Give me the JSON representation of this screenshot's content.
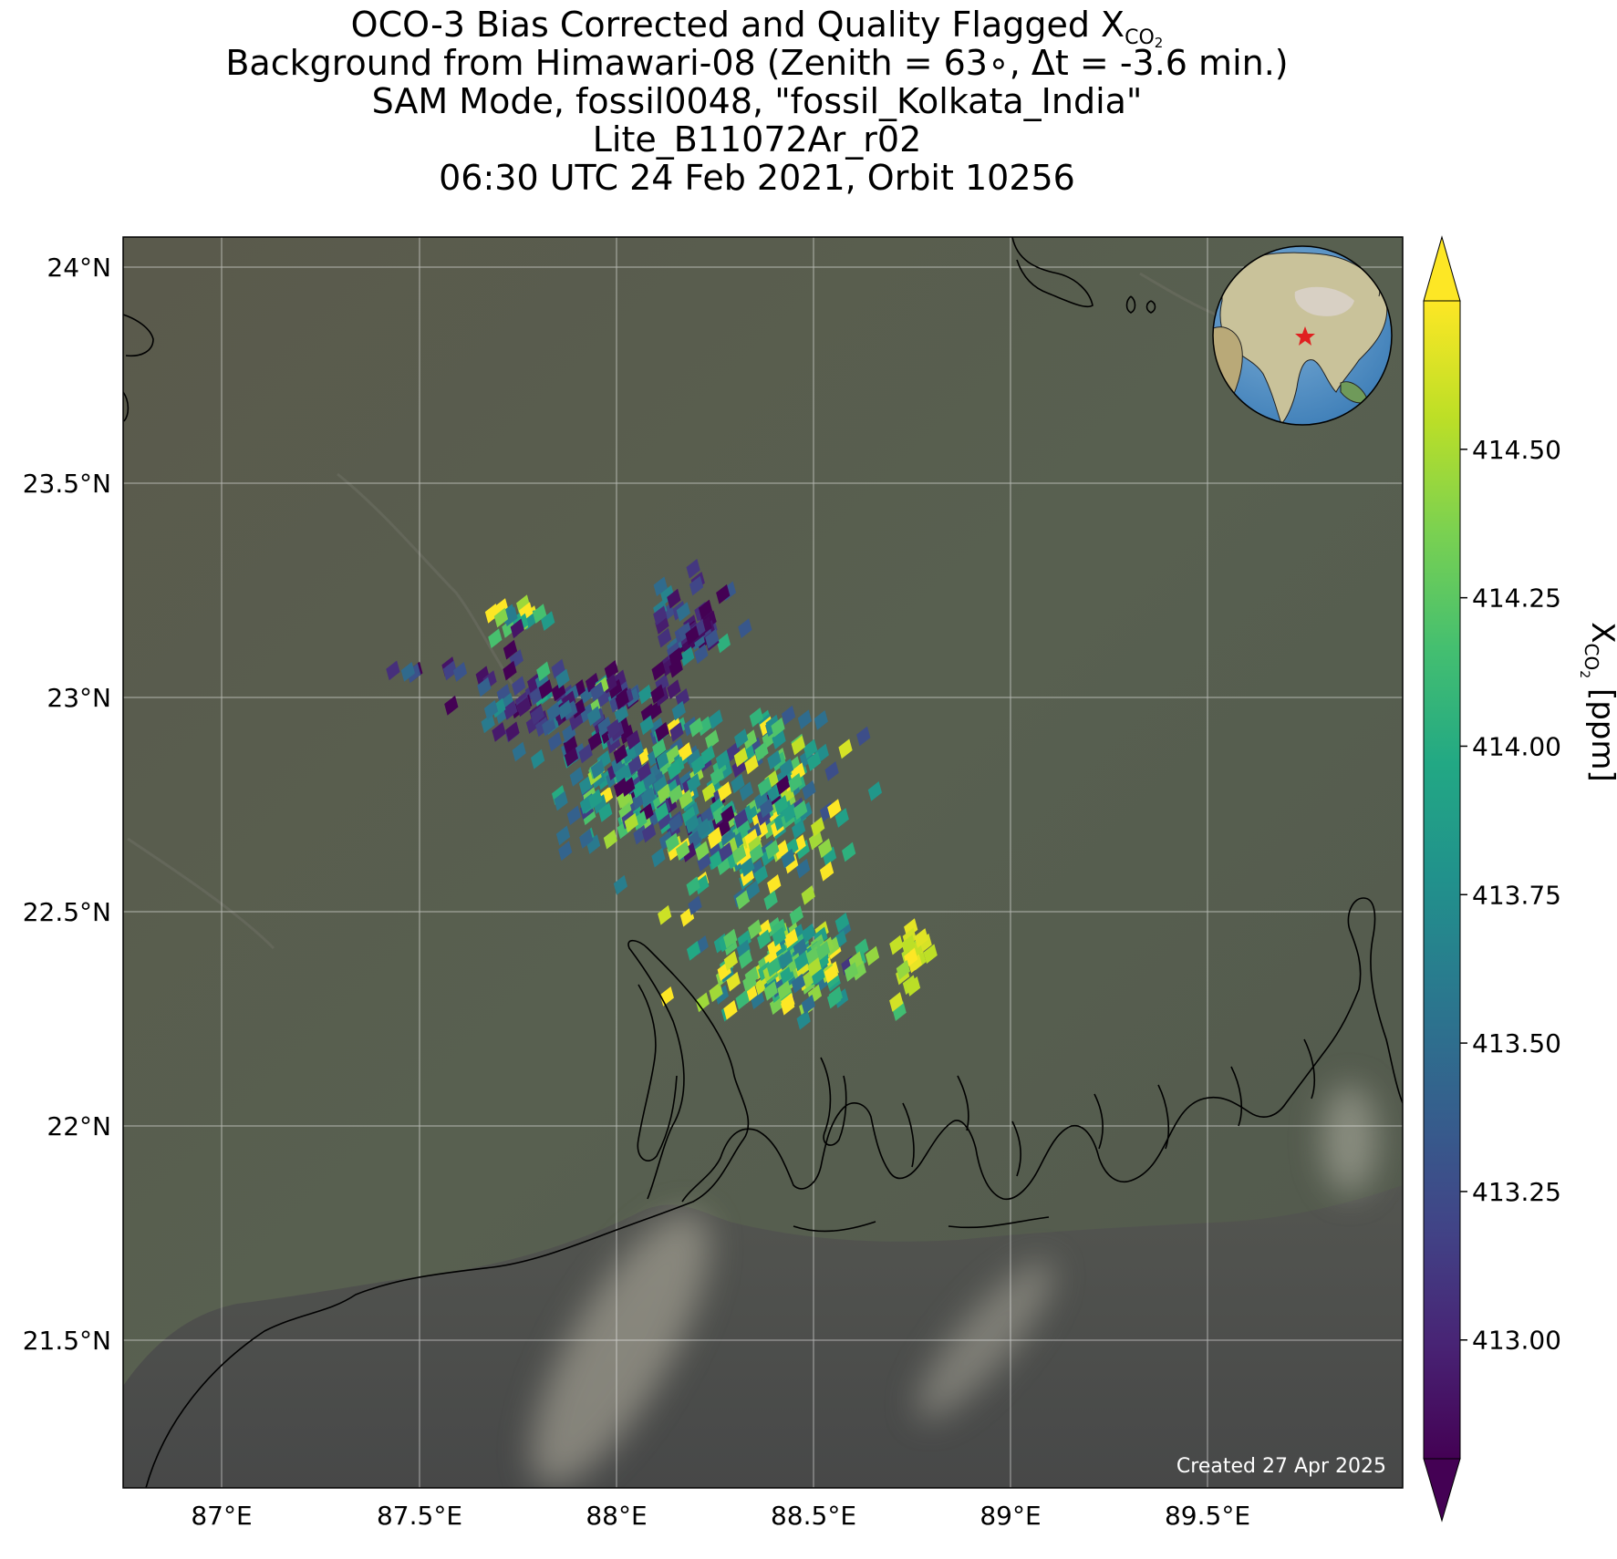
{
  "title": {
    "line1_main": "OCO-3 Bias Corrected and Quality Flagged X",
    "line1_sub": "CO",
    "line1_subsub": "2",
    "line2": "Background from Himawari-08 (Zenith = 63∘, Δt = -3.6 min.)",
    "line3": "SAM Mode, fossil0048, \"fossil_Kolkata_India\"",
    "line4": "Lite_B11072Ar_r02",
    "line5": "06:30 UTC 24 Feb 2021, Orbit 10256"
  },
  "footer": {
    "created": "Created 27 Apr 2025"
  },
  "map": {
    "lon_range": [
      86.72,
      89.97
    ],
    "lat_range": [
      21.07,
      24.07
    ],
    "lon_ticks": [
      {
        "value": 87.0,
        "label": "87°E"
      },
      {
        "value": 87.5,
        "label": "87.5°E"
      },
      {
        "value": 88.0,
        "label": "88°E"
      },
      {
        "value": 88.5,
        "label": "88.5°E"
      },
      {
        "value": 89.0,
        "label": "89°E"
      },
      {
        "value": 89.5,
        "label": "89.5°E"
      }
    ],
    "lat_ticks": [
      {
        "value": 24.0,
        "label": "24°N"
      },
      {
        "value": 23.5,
        "label": "23.5°N"
      },
      {
        "value": 23.0,
        "label": "23°N"
      },
      {
        "value": 22.5,
        "label": "22.5°N"
      },
      {
        "value": 22.0,
        "label": "22°N"
      },
      {
        "value": 21.5,
        "label": "21.5°N"
      }
    ],
    "grid": true,
    "background": "satellite true-color (Himawari-08)",
    "inset": "globe locator (top-right) with red star marker at Kolkata",
    "colors": {
      "land": "#545a4c",
      "sea": "#4a4b4a",
      "coastline": "#000000",
      "gridline": "#ffffff",
      "star": "#e02020"
    }
  },
  "colorbar": {
    "colormap": "viridis",
    "range": [
      412.8,
      414.75
    ],
    "extend": "both",
    "ticks": [
      {
        "value": 413.0,
        "label": "413.00"
      },
      {
        "value": 413.25,
        "label": "413.25"
      },
      {
        "value": 413.5,
        "label": "413.50"
      },
      {
        "value": 413.75,
        "label": "413.75"
      },
      {
        "value": 414.0,
        "label": "414.00"
      },
      {
        "value": 414.25,
        "label": "414.25"
      },
      {
        "value": 414.5,
        "label": "414.50"
      }
    ],
    "label_main": "X",
    "label_sub": "CO",
    "label_subsub": "2",
    "label_units": " [ppm]"
  },
  "chart_data": {
    "type": "heatmap",
    "variable": "XCO2",
    "units": "ppm",
    "description_of_values": "XCO2 soundings in swaths",
    "footprint_clusters": [
      {
        "center": [
          88.05,
          22.75
        ],
        "spread": [
          0.18,
          0.12
        ],
        "count": 170,
        "mean": 413.7,
        "sd": 0.55
      },
      {
        "center": [
          87.85,
          22.95
        ],
        "spread": [
          0.2,
          0.08
        ],
        "count": 110,
        "mean": 413.1,
        "sd": 0.45
      },
      {
        "center": [
          88.15,
          23.12
        ],
        "spread": [
          0.1,
          0.1
        ],
        "count": 55,
        "mean": 413.0,
        "sd": 0.35
      },
      {
        "center": [
          88.28,
          22.62
        ],
        "spread": [
          0.18,
          0.1
        ],
        "count": 130,
        "mean": 414.1,
        "sd": 0.5
      },
      {
        "center": [
          88.42,
          22.33
        ],
        "spread": [
          0.16,
          0.09
        ],
        "count": 160,
        "mean": 414.2,
        "sd": 0.45
      },
      {
        "center": [
          88.4,
          22.8
        ],
        "spread": [
          0.14,
          0.12
        ],
        "count": 70,
        "mean": 413.9,
        "sd": 0.5
      },
      {
        "center": [
          88.72,
          22.35
        ],
        "spread": [
          0.04,
          0.08
        ],
        "count": 18,
        "mean": 414.6,
        "sd": 0.15
      },
      {
        "center": [
          87.72,
          23.15
        ],
        "spread": [
          0.05,
          0.04
        ],
        "count": 18,
        "mean": 414.3,
        "sd": 0.5
      },
      {
        "center": [
          87.55,
          23.02
        ],
        "spread": [
          0.08,
          0.02
        ],
        "count": 10,
        "mean": 413.1,
        "sd": 0.2
      }
    ]
  }
}
